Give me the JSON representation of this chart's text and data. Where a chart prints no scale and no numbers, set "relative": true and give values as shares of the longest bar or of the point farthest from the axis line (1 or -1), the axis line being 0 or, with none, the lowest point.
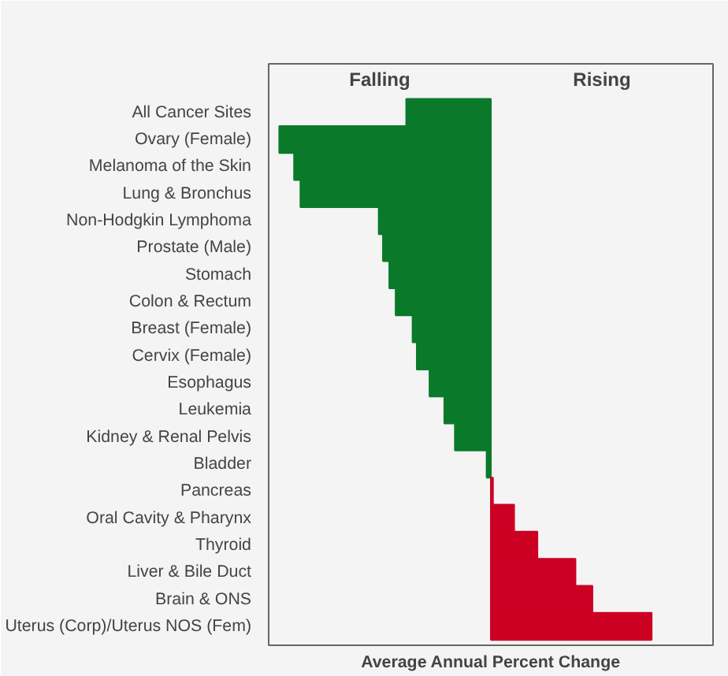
{
  "chart_data": {
    "type": "bar",
    "orientation": "horizontal",
    "relative": true,
    "categories": [
      "All Cancer Sites",
      "Ovary (Female)",
      "Melanoma of the Skin",
      "Lung & Bronchus",
      "Non-Hodgkin Lymphoma",
      "Prostate (Male)",
      "Stomach",
      "Colon & Rectum",
      "Breast (Female)",
      "Cervix (Female)",
      "Esophagus",
      "Leukemia",
      "Kidney & Renal Pelvis",
      "Bladder",
      "Pancreas",
      "Oral Cavity & Pharynx",
      "Thyroid",
      "Liver & Bile Duct",
      "Brain & ONS",
      "Uterus (Corp)/Uterus NOS (Fem)"
    ],
    "values": [
      -0.4,
      -1,
      -0.93,
      -0.9,
      -0.53,
      -0.51,
      -0.48,
      -0.45,
      -0.37,
      -0.35,
      -0.29,
      -0.22,
      -0.17,
      -0.02,
      0.01,
      0.11,
      0.22,
      0.4,
      0.48,
      0.76
    ],
    "colors": [
      "#0a7a2a",
      "#0a7a2a",
      "#0a7a2a",
      "#0a7a2a",
      "#0a7a2a",
      "#0a7a2a",
      "#0a7a2a",
      "#0a7a2a",
      "#0a7a2a",
      "#0a7a2a",
      "#0a7a2a",
      "#0a7a2a",
      "#0a7a2a",
      "#0a7a2a",
      "#cc0022",
      "#cc0022",
      "#cc0022",
      "#cc0022",
      "#cc0022",
      "#cc0022"
    ],
    "annotations": [
      "Falling",
      "Rising"
    ],
    "xlabel": "Average Annual Percent Change",
    "grid": false
  }
}
